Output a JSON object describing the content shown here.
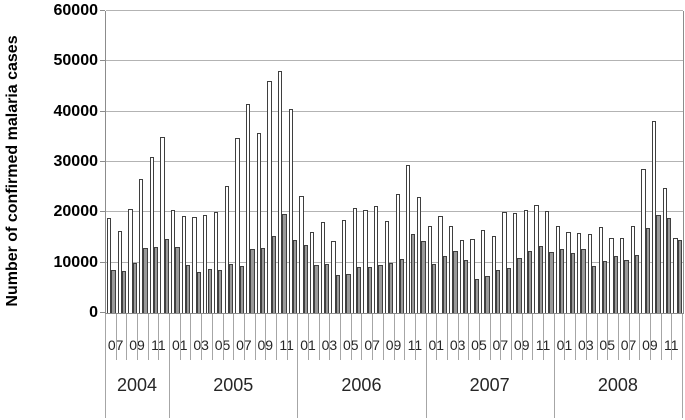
{
  "chart_data": {
    "type": "bar",
    "title": "",
    "ylabel": "Number of confirmed malaria cases",
    "xlabel": "",
    "ylim": [
      0,
      60000
    ],
    "grid": "horizontal",
    "legend": "none",
    "y_ticks": [
      0,
      10000,
      20000,
      30000,
      40000,
      50000,
      60000
    ],
    "x_tick_labels": [
      "07",
      "09",
      "11",
      "01",
      "03",
      "05",
      "07",
      "09",
      "11",
      "01",
      "03",
      "05",
      "07",
      "09",
      "11",
      "01",
      "03",
      "05",
      "07",
      "09",
      "11",
      "01",
      "03",
      "05",
      "07",
      "09",
      "11"
    ],
    "years": [
      {
        "label": "2004",
        "months": 6
      },
      {
        "label": "2005",
        "months": 12
      },
      {
        "label": "2006",
        "months": 12
      },
      {
        "label": "2007",
        "months": 12
      },
      {
        "label": "2008",
        "months": 12
      }
    ],
    "categories": [
      "2004-07",
      "2004-08",
      "2004-09",
      "2004-10",
      "2004-11",
      "2004-12",
      "2005-01",
      "2005-02",
      "2005-03",
      "2005-04",
      "2005-05",
      "2005-06",
      "2005-07",
      "2005-08",
      "2005-09",
      "2005-10",
      "2005-11",
      "2005-12",
      "2006-01",
      "2006-02",
      "2006-03",
      "2006-04",
      "2006-05",
      "2006-06",
      "2006-07",
      "2006-08",
      "2006-09",
      "2006-10",
      "2006-11",
      "2006-12",
      "2007-01",
      "2007-02",
      "2007-03",
      "2007-04",
      "2007-05",
      "2007-06",
      "2007-07",
      "2007-08",
      "2007-09",
      "2007-10",
      "2007-11",
      "2007-12",
      "2008-01",
      "2008-02",
      "2008-03",
      "2008-04",
      "2008-05",
      "2008-06",
      "2008-07",
      "2008-08",
      "2008-09",
      "2008-10",
      "2008-11",
      "2008-12"
    ],
    "series": [
      {
        "name": "confirmed-cases-white-bars",
        "fill": "#ffffff",
        "values": [
          18800,
          16300,
          20700,
          26700,
          31000,
          35000,
          20500,
          19300,
          19100,
          19400,
          20100,
          25300,
          34800,
          41500,
          35800,
          46000,
          48000,
          40600,
          23300,
          16000,
          18000,
          14300,
          18400,
          20900,
          20500,
          21300,
          18200,
          23700,
          29500,
          23100,
          17200,
          19300,
          17200,
          14500,
          14700,
          16400,
          15300,
          20000,
          19800,
          20500,
          21500,
          20300,
          17200,
          16000,
          15900,
          15600,
          17000,
          14900,
          15000,
          17200,
          28700,
          38200,
          24800,
          15000
        ]
      },
      {
        "name": "confirmed-cases-gray-bars",
        "fill": "#999999",
        "values": [
          8500,
          8400,
          10000,
          13000,
          13200,
          14700,
          13100,
          9500,
          8200,
          8800,
          8500,
          9700,
          9400,
          12700,
          13000,
          15400,
          19700,
          14500,
          13500,
          9500,
          9800,
          7500,
          7700,
          9100,
          9100,
          9600,
          9900,
          10800,
          15600,
          14400,
          9800,
          11300,
          12300,
          10500,
          6800,
          7300,
          8600,
          9000,
          11000,
          12300,
          13400,
          12100,
          12800,
          11900,
          12800,
          9300,
          10300,
          11300,
          10600,
          11500,
          16800,
          19400,
          18800,
          14600
        ]
      }
    ],
    "colors": {
      "axis": "#8c8c8c",
      "gridline": "#b3b3b3",
      "bar_border": "#3f3f3f",
      "tick_line": "#a6a6a6",
      "text": "#000000"
    }
  }
}
